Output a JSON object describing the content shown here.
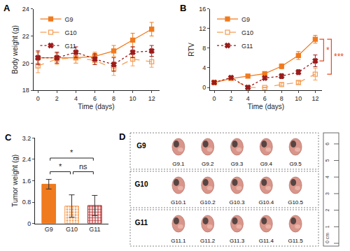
{
  "chart_data": [
    {
      "type": "line",
      "title": "A",
      "x": [
        0,
        2,
        4,
        6,
        8,
        10,
        12
      ],
      "x_label": "Time (days)",
      "y_label": "Body weight (g)",
      "xlim": [
        -0.5,
        12.8
      ],
      "xticks": [
        0,
        2,
        4,
        6,
        8,
        10,
        12
      ],
      "ylim": [
        18,
        24
      ],
      "yticks": [
        18,
        20,
        22,
        24
      ],
      "grid": false,
      "legend": "upper left",
      "series": [
        {
          "name": "G9",
          "color": "#f07a1e",
          "marker": "square",
          "line_style": "solid",
          "values": [
            20.4,
            20.4,
            20.4,
            20.5,
            20.9,
            21.7,
            22.5
          ],
          "error": [
            0.4,
            0.4,
            0.4,
            0.3,
            0.4,
            0.5,
            0.5
          ]
        },
        {
          "name": "G10",
          "color": "#f5a05a",
          "marker": "square-open",
          "line_style": "dashed",
          "values": [
            19.8,
            20.3,
            20.4,
            20.2,
            19.6,
            20.3,
            20.1
          ],
          "error": [
            0.5,
            0.4,
            0.4,
            0.3,
            0.5,
            0.5,
            0.4
          ]
        },
        {
          "name": "G11",
          "color": "#9b1c1c",
          "marker": "x",
          "line_style": "dotted",
          "values": [
            20.4,
            20.4,
            20.8,
            20.3,
            19.9,
            20.8,
            20.9
          ],
          "error": [
            0.5,
            0.4,
            0.4,
            0.4,
            0.5,
            0.4,
            0.4
          ]
        }
      ]
    },
    {
      "type": "line",
      "title": "B",
      "x": [
        0,
        2,
        4,
        6,
        8,
        10,
        12
      ],
      "x_label": "Time (days)",
      "y_label": "RTV",
      "xlim": [
        -0.5,
        12.8
      ],
      "xticks": [
        0,
        2,
        4,
        6,
        8,
        10,
        12
      ],
      "ylim": [
        -0.6,
        16
      ],
      "yticks": [
        0,
        4,
        8,
        12,
        16
      ],
      "grid": false,
      "legend": "upper left",
      "series": [
        {
          "name": "G9",
          "color": "#f07a1e",
          "marker": "square",
          "line_style": "solid",
          "values": [
            1,
            1.8,
            2.3,
            2.8,
            4.3,
            6.5,
            9.8
          ],
          "error": [
            0,
            0.2,
            0.3,
            0.3,
            0.5,
            0.8,
            0.8
          ]
        },
        {
          "name": "G10",
          "color": "#f5a05a",
          "marker": "square-open",
          "line_style": "dashed",
          "values": [
            1,
            1.8,
            0,
            0,
            0.6,
            1.0,
            2.7
          ],
          "error": [
            0,
            0.2,
            0,
            0,
            0.3,
            0.3,
            1.2
          ]
        },
        {
          "name": "G11",
          "color": "#9b1c1c",
          "marker": "x",
          "line_style": "dotted",
          "values": [
            1,
            2.0,
            0,
            1.9,
            2.3,
            3.1,
            5.4
          ],
          "error": [
            0,
            0.2,
            0,
            0.3,
            0.5,
            0.5,
            1.2
          ]
        }
      ],
      "annotations": [
        {
          "text": "*",
          "from": "G9",
          "to": "G11",
          "color": "#e8491d"
        },
        {
          "text": "***",
          "from": "G9",
          "to": "G10",
          "color": "#e8491d"
        }
      ]
    },
    {
      "type": "bar",
      "title": "C",
      "categories": [
        "G9",
        "G10",
        "G11"
      ],
      "values": [
        1.47,
        0.65,
        0.67
      ],
      "error": [
        0.18,
        0.42,
        0.38
      ],
      "colors": [
        "#f07a1e",
        "#f5a05a",
        "#b32626"
      ],
      "y_label": "Tumor weight (g)",
      "ylim": [
        0,
        3.2
      ],
      "yticks": [
        0,
        0.8,
        1.6,
        2.4,
        3.2
      ],
      "grid": false,
      "annotations": [
        {
          "text": "*",
          "from": "G9",
          "to": "G10"
        },
        {
          "text": "ns",
          "from": "G10",
          "to": "G11"
        },
        {
          "text": "*",
          "from": "G9",
          "to": "G11"
        }
      ]
    }
  ],
  "photo_panel": {
    "title": "D",
    "groups": [
      {
        "name": "G9",
        "samples": [
          "G9.1",
          "G9.2",
          "G9.3",
          "G9.4",
          "G9.5"
        ]
      },
      {
        "name": "G10",
        "samples": [
          "G10.1",
          "G10.2",
          "G10.3",
          "G10.4",
          "G10.5"
        ]
      },
      {
        "name": "G11",
        "samples": [
          "G11.1",
          "G11.2",
          "G11.3",
          "G11.4",
          "G11.5"
        ]
      }
    ],
    "ruler": {
      "range": [
        0,
        6.5
      ],
      "ticks": [
        {
          "value": 0,
          "label": "0 cm"
        },
        1,
        2,
        3,
        4,
        5,
        6
      ]
    }
  }
}
